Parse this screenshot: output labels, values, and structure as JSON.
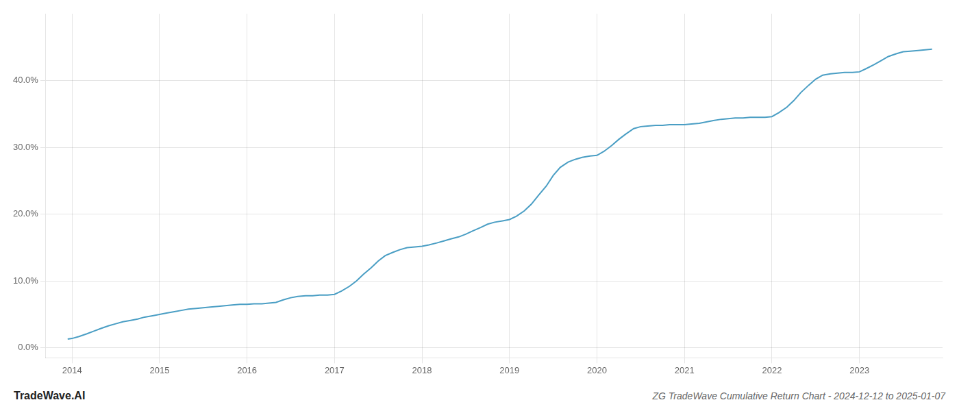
{
  "chart_data": {
    "type": "line",
    "title": "ZG TradeWave Cumulative Return Chart - 2024-12-12 to 2025-01-07",
    "annotations": [
      "TradeWave.AI"
    ],
    "color": "#4a9ec4",
    "grid": true,
    "x": [
      2013.95,
      2014.0,
      2014.08,
      2014.17,
      2014.25,
      2014.33,
      2014.42,
      2014.5,
      2014.58,
      2014.67,
      2014.75,
      2014.83,
      2014.92,
      2015.0,
      2015.08,
      2015.17,
      2015.25,
      2015.33,
      2015.42,
      2015.5,
      2015.58,
      2015.67,
      2015.75,
      2015.83,
      2015.92,
      2016.0,
      2016.08,
      2016.17,
      2016.25,
      2016.33,
      2016.42,
      2016.5,
      2016.58,
      2016.67,
      2016.75,
      2016.83,
      2016.92,
      2017.0,
      2017.08,
      2017.17,
      2017.25,
      2017.33,
      2017.42,
      2017.5,
      2017.58,
      2017.67,
      2017.75,
      2017.83,
      2017.92,
      2018.0,
      2018.08,
      2018.17,
      2018.25,
      2018.33,
      2018.42,
      2018.5,
      2018.58,
      2018.67,
      2018.75,
      2018.83,
      2018.92,
      2019.0,
      2019.08,
      2019.17,
      2019.25,
      2019.33,
      2019.42,
      2019.5,
      2019.58,
      2019.67,
      2019.75,
      2019.83,
      2019.92,
      2020.0,
      2020.08,
      2020.17,
      2020.25,
      2020.33,
      2020.42,
      2020.5,
      2020.58,
      2020.67,
      2020.75,
      2020.83,
      2020.92,
      2021.0,
      2021.08,
      2021.17,
      2021.25,
      2021.33,
      2021.42,
      2021.5,
      2021.58,
      2021.67,
      2021.75,
      2021.83,
      2021.92,
      2022.0,
      2022.08,
      2022.17,
      2022.25,
      2022.33,
      2022.42,
      2022.5,
      2022.58,
      2022.67,
      2022.75,
      2022.83,
      2022.92,
      2023.0,
      2023.08,
      2023.17,
      2023.25,
      2023.33,
      2023.42,
      2023.5,
      2023.58,
      2023.67,
      2023.75,
      2023.83
    ],
    "values": [
      0.013,
      0.014,
      0.017,
      0.021,
      0.025,
      0.029,
      0.033,
      0.036,
      0.039,
      0.041,
      0.043,
      0.046,
      0.048,
      0.05,
      0.052,
      0.054,
      0.056,
      0.058,
      0.059,
      0.06,
      0.061,
      0.062,
      0.063,
      0.064,
      0.065,
      0.065,
      0.066,
      0.066,
      0.067,
      0.068,
      0.072,
      0.075,
      0.077,
      0.078,
      0.078,
      0.079,
      0.079,
      0.08,
      0.085,
      0.092,
      0.1,
      0.11,
      0.12,
      0.13,
      0.138,
      0.143,
      0.147,
      0.15,
      0.151,
      0.152,
      0.154,
      0.157,
      0.16,
      0.163,
      0.166,
      0.17,
      0.175,
      0.18,
      0.185,
      0.188,
      0.19,
      0.192,
      0.197,
      0.205,
      0.215,
      0.228,
      0.242,
      0.258,
      0.27,
      0.278,
      0.282,
      0.285,
      0.287,
      0.288,
      0.294,
      0.303,
      0.312,
      0.32,
      0.328,
      0.331,
      0.332,
      0.333,
      0.333,
      0.334,
      0.334,
      0.334,
      0.335,
      0.336,
      0.338,
      0.34,
      0.342,
      0.343,
      0.344,
      0.344,
      0.345,
      0.345,
      0.345,
      0.346,
      0.352,
      0.36,
      0.37,
      0.382,
      0.393,
      0.402,
      0.408,
      0.41,
      0.411,
      0.412,
      0.412,
      0.413,
      0.418,
      0.424,
      0.43,
      0.436,
      0.44,
      0.443,
      0.444,
      0.445,
      0.446,
      0.447
    ],
    "xlim": [
      2013.7,
      2023.95
    ],
    "xticks": [
      2014,
      2015,
      2016,
      2017,
      2018,
      2019,
      2020,
      2021,
      2022,
      2023
    ],
    "ylim": [
      -0.015,
      0.5
    ],
    "yticks": [
      {
        "value": 0.0,
        "label": "0.0%"
      },
      {
        "value": 0.1,
        "label": "10.0%"
      },
      {
        "value": 0.2,
        "label": "20.0%"
      },
      {
        "value": 0.3,
        "label": "30.0%"
      },
      {
        "value": 0.4,
        "label": "40.0%"
      }
    ]
  }
}
